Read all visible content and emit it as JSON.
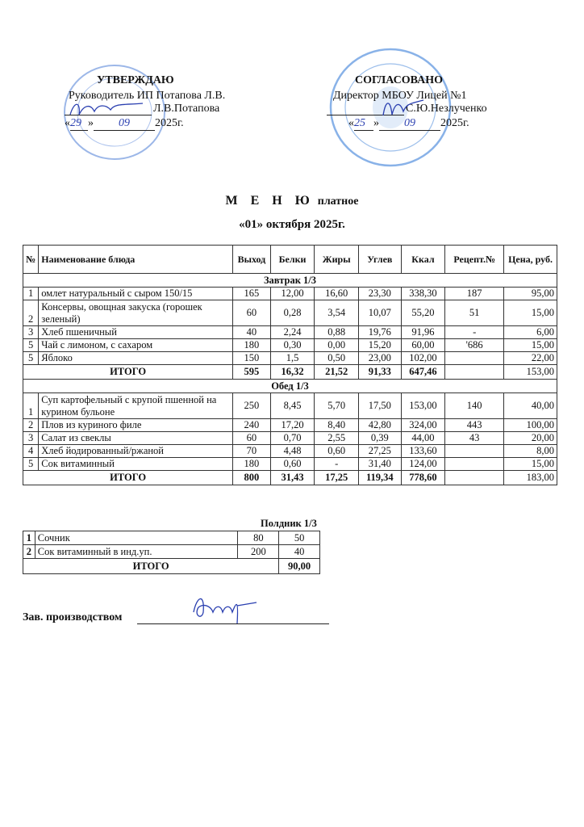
{
  "approve": {
    "title": "УТВЕРЖДАЮ",
    "position": "Руководитель ИП Потапова Л.В.",
    "name": "Л.В.Потапова",
    "date_day": "29",
    "date_month": "09",
    "date_year": "2025г.",
    "stamp_color": "#3b6fd0"
  },
  "agree": {
    "title": "СОГЛАСОВАНО",
    "position": "Директор МБОУ Лицей №1",
    "name": "С.Ю.Незлученко",
    "date_day": "25",
    "date_month": "09",
    "date_year": "2025г.",
    "stamp_color": "#3b7fd8"
  },
  "title": {
    "main": "М Е Н Ю",
    "sub": "платное",
    "date": "«01» октября 2025г."
  },
  "columns": [
    "№",
    "Наименование блюда",
    "Выход",
    "Белки",
    "Жиры",
    "Углев",
    "Ккал",
    "Рецепт.№",
    "Цена, руб."
  ],
  "breakfast": {
    "label": "Завтрак   1/3",
    "rows": [
      [
        "1",
        "омлет натуральный с сыром 150/15",
        "165",
        "12,00",
        "16,60",
        "23,30",
        "338,30",
        "187",
        "95,00"
      ],
      [
        "2",
        "Консервы, овощная закуска (горошек зеленый)",
        "60",
        "0,28",
        "3,54",
        "10,07",
        "55,20",
        "51",
        "15,00"
      ],
      [
        "3",
        "Хлеб пшеничный",
        "40",
        "2,24",
        "0,88",
        "19,76",
        "91,96",
        "-",
        "6,00"
      ],
      [
        "5",
        "Чай с лимоном, с сахаром",
        "180",
        "0,30",
        "0,00",
        "15,20",
        "60,00",
        "'686",
        "15,00"
      ],
      [
        "5",
        "Яблоко",
        "150",
        "1,5",
        "0,50",
        "23,00",
        "102,00",
        "",
        "22,00"
      ]
    ],
    "total": [
      "ИТОГО",
      "595",
      "16,32",
      "21,52",
      "91,33",
      "647,46",
      "",
      "153,00"
    ]
  },
  "lunch": {
    "label": "Обед   1/3",
    "rows": [
      [
        "1",
        "Суп картофельный  с крупой пшенной на курином бульоне",
        "250",
        "8,45",
        "5,70",
        "17,50",
        "153,00",
        "140",
        "40,00"
      ],
      [
        "2",
        "Плов из куриного филе",
        "240",
        "17,20",
        "8,40",
        "42,80",
        "324,00",
        "443",
        "100,00"
      ],
      [
        "3",
        "Салат из свеклы",
        "60",
        "0,70",
        "2,55",
        "0,39",
        "44,00",
        "43",
        "20,00"
      ],
      [
        "4",
        "Хлеб йодированный/ржаной",
        "70",
        "4,48",
        "0,60",
        "27,25",
        "133,60",
        "",
        "8,00"
      ],
      [
        "5",
        "Сок витаминный",
        "180",
        "0,60",
        "-",
        "31,40",
        "124,00",
        "",
        "15,00"
      ]
    ],
    "total": [
      "ИТОГО",
      "800",
      "31,43",
      "17,25",
      "119,34",
      "778,60",
      "",
      "183,00"
    ]
  },
  "snack": {
    "label": "Полдник 1/3",
    "rows": [
      [
        "1",
        "Сочник",
        "80",
        "50"
      ],
      [
        "2",
        "Сок витаминный в инд.уп.",
        "200",
        "40"
      ]
    ],
    "total": [
      "ИТОГО",
      "90,00"
    ]
  },
  "footer": {
    "label": "Зав. производством",
    "signature_color": "#2a3fb0"
  }
}
